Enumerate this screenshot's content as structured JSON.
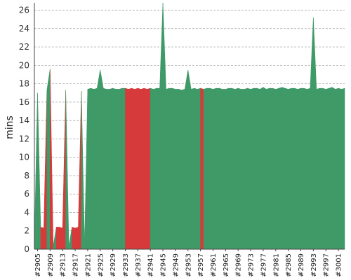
{
  "chart_data": {
    "type": "area",
    "title": "",
    "xlabel": "",
    "ylabel": "mins",
    "ylim": [
      0,
      26.8
    ],
    "yticks": [
      0,
      2,
      4,
      6,
      8,
      10,
      12,
      14,
      16,
      18,
      20,
      22,
      24,
      26
    ],
    "xtick_labels": [
      "#2905",
      "#2909",
      "#2913",
      "#2917",
      "#2921",
      "#2925",
      "#2929",
      "#2933",
      "#2937",
      "#2941",
      "#2945",
      "#2949",
      "#2953",
      "#2957",
      "#2961",
      "#2965",
      "#2969",
      "#2973",
      "#2977",
      "#2981",
      "#2985",
      "#2989",
      "#2993",
      "#2997",
      "#3001"
    ],
    "grid": true,
    "colors": {
      "success": "#3f9a68",
      "failure": "#d63a3a"
    },
    "build_numbers": [
      2904,
      2905,
      2906,
      2907,
      2908,
      2909,
      2910,
      2911,
      2912,
      2913,
      2914,
      2915,
      2916,
      2917,
      2918,
      2919,
      2920,
      2921,
      2922,
      2923,
      2924,
      2925,
      2926,
      2927,
      2928,
      2929,
      2930,
      2931,
      2932,
      2933,
      2934,
      2935,
      2936,
      2937,
      2938,
      2939,
      2940,
      2941,
      2942,
      2943,
      2944,
      2945,
      2946,
      2947,
      2948,
      2949,
      2950,
      2951,
      2952,
      2953,
      2954,
      2955,
      2956,
      2957,
      2958,
      2959,
      2960,
      2961,
      2962,
      2963,
      2964,
      2965,
      2966,
      2967,
      2968,
      2969,
      2970,
      2971,
      2972,
      2973,
      2974,
      2975,
      2976,
      2977,
      2978,
      2979,
      2980,
      2981,
      2982,
      2983,
      2984,
      2985,
      2986,
      2987,
      2988,
      2989,
      2990,
      2991,
      2992,
      2993,
      2994,
      2995,
      2996,
      2997,
      2998,
      2999,
      3000,
      3001,
      3002,
      3003
    ],
    "durations": [
      0.5,
      17.0,
      2.4,
      2.3,
      17.3,
      19.6,
      0.3,
      2.4,
      2.4,
      2.3,
      17.3,
      0.3,
      2.4,
      2.3,
      2.4,
      17.2,
      0.3,
      17.4,
      17.5,
      17.4,
      17.5,
      19.5,
      17.5,
      17.4,
      17.4,
      17.5,
      17.4,
      17.4,
      17.5,
      17.5,
      17.4,
      17.5,
      17.4,
      17.5,
      17.4,
      17.5,
      17.4,
      17.5,
      17.4,
      17.5,
      17.5,
      26.8,
      17.4,
      17.5,
      17.5,
      17.4,
      17.4,
      17.3,
      17.4,
      19.5,
      17.4,
      17.5,
      17.4,
      17.5,
      17.4,
      17.5,
      17.5,
      17.4,
      17.5,
      17.5,
      17.4,
      17.4,
      17.5,
      17.5,
      17.4,
      17.5,
      17.4,
      17.4,
      17.5,
      17.4,
      17.5,
      17.5,
      17.4,
      17.6,
      17.4,
      17.5,
      17.5,
      17.4,
      17.5,
      17.6,
      17.5,
      17.4,
      17.5,
      17.5,
      17.4,
      17.5,
      17.5,
      17.4,
      17.5,
      25.2,
      17.4,
      17.5,
      17.5,
      17.4,
      17.5,
      17.6,
      17.4,
      17.5,
      17.4,
      17.5
    ],
    "status": [
      "S",
      "S",
      "F",
      "F",
      "S",
      "F",
      "S",
      "F",
      "F",
      "F",
      "S",
      "S",
      "F",
      "F",
      "F",
      "S",
      "S",
      "S",
      "S",
      "S",
      "S",
      "S",
      "S",
      "S",
      "S",
      "S",
      "S",
      "S",
      "S",
      "F",
      "F",
      "F",
      "F",
      "F",
      "F",
      "F",
      "F",
      "S",
      "S",
      "S",
      "S",
      "S",
      "S",
      "S",
      "S",
      "S",
      "S",
      "S",
      "S",
      "S",
      "S",
      "S",
      "S",
      "F",
      "S",
      "S",
      "S",
      "S",
      "S",
      "S",
      "S",
      "S",
      "S",
      "S",
      "S",
      "S",
      "S",
      "S",
      "S",
      "S",
      "S",
      "S",
      "S",
      "S",
      "S",
      "S",
      "S",
      "S",
      "S",
      "S",
      "S",
      "S",
      "S",
      "S",
      "S",
      "S",
      "S",
      "S",
      "S",
      "S",
      "S",
      "S",
      "S",
      "S",
      "S",
      "S",
      "S",
      "S",
      "S",
      "S"
    ]
  }
}
